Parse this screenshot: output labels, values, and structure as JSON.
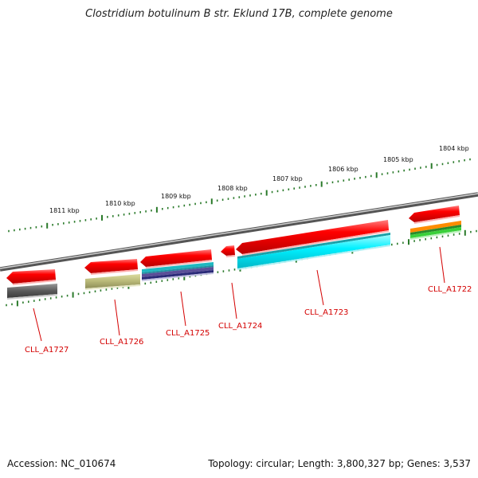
{
  "title": "Clostridium botulinum B str. Eklund 17B, complete genome",
  "scale_labels": [
    "1811 kbp",
    "1810 kbp",
    "1809 kbp",
    "1808 kbp",
    "1807 kbp",
    "1806 kbp",
    "1805 kbp",
    "1804 kbp"
  ],
  "genes": [
    {
      "id": "CLL_A1727"
    },
    {
      "id": "CLL_A1726"
    },
    {
      "id": "CLL_A1725"
    },
    {
      "id": "CLL_A1724"
    },
    {
      "id": "CLL_A1723"
    },
    {
      "id": "CLL_A1722"
    }
  ],
  "colors": {
    "gene": "#ff1a1a",
    "backbone": "#8c8c8c",
    "ticks": "#2a7a2a",
    "label": "#d40000"
  },
  "footer": {
    "accession": "Accession: NC_010674",
    "topology": "Topology: circular; Length: 3,800,327 bp; Genes: 3,537"
  }
}
